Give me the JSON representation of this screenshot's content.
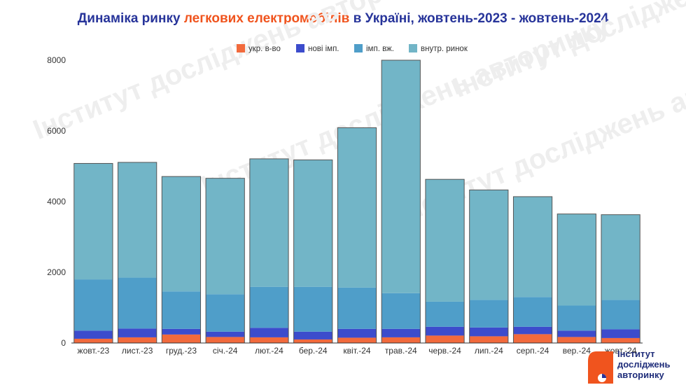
{
  "title": {
    "part1": "Динаміка ринку ",
    "accent": "легкових електромобілів",
    "part2": " в Україні, жовтень-2023 - жовтень-2024"
  },
  "watermark_text": "Інститут досліджень авторинку",
  "logo": {
    "line1": "Інститут",
    "line2": "досліджень",
    "line3": "авторинку"
  },
  "colors": {
    "title": "#27349a",
    "accent": "#f0541e",
    "series": [
      "#f26a3c",
      "#3c4ccc",
      "#4f9ec9",
      "#72b5c7"
    ]
  },
  "chart_data": {
    "type": "bar",
    "stacked": true,
    "categories": [
      "жовт.-23",
      "лист.-23",
      "груд.-23",
      "січ.-24",
      "лют.-24",
      "бер.-24",
      "квіт.-24",
      "трав.-24",
      "черв.-24",
      "лип.-24",
      "серп.-24",
      "вер.-24",
      "жовт.-24"
    ],
    "series": [
      {
        "name": "укр. в-во",
        "color": "#f26a3c",
        "values": [
          120,
          160,
          240,
          170,
          160,
          100,
          150,
          160,
          210,
          190,
          250,
          170,
          140
        ]
      },
      {
        "name": "нові імп.",
        "color": "#3c4ccc",
        "values": [
          230,
          250,
          160,
          150,
          270,
          220,
          250,
          240,
          250,
          250,
          210,
          180,
          250
        ]
      },
      {
        "name": "імп. вж.",
        "color": "#4f9ec9",
        "values": [
          1450,
          1440,
          1060,
          1060,
          1160,
          1270,
          1170,
          1010,
          710,
          780,
          840,
          710,
          830
        ]
      },
      {
        "name": "внутр. ринок",
        "color": "#72b5c7",
        "values": [
          3280,
          3260,
          3250,
          3280,
          3620,
          3590,
          4520,
          6590,
          3460,
          3110,
          2840,
          2590,
          2410
        ]
      }
    ],
    "ylim": [
      0,
      8000
    ],
    "yticks": [
      0,
      2000,
      4000,
      6000,
      8000
    ],
    "grid": false,
    "legend": "top"
  }
}
